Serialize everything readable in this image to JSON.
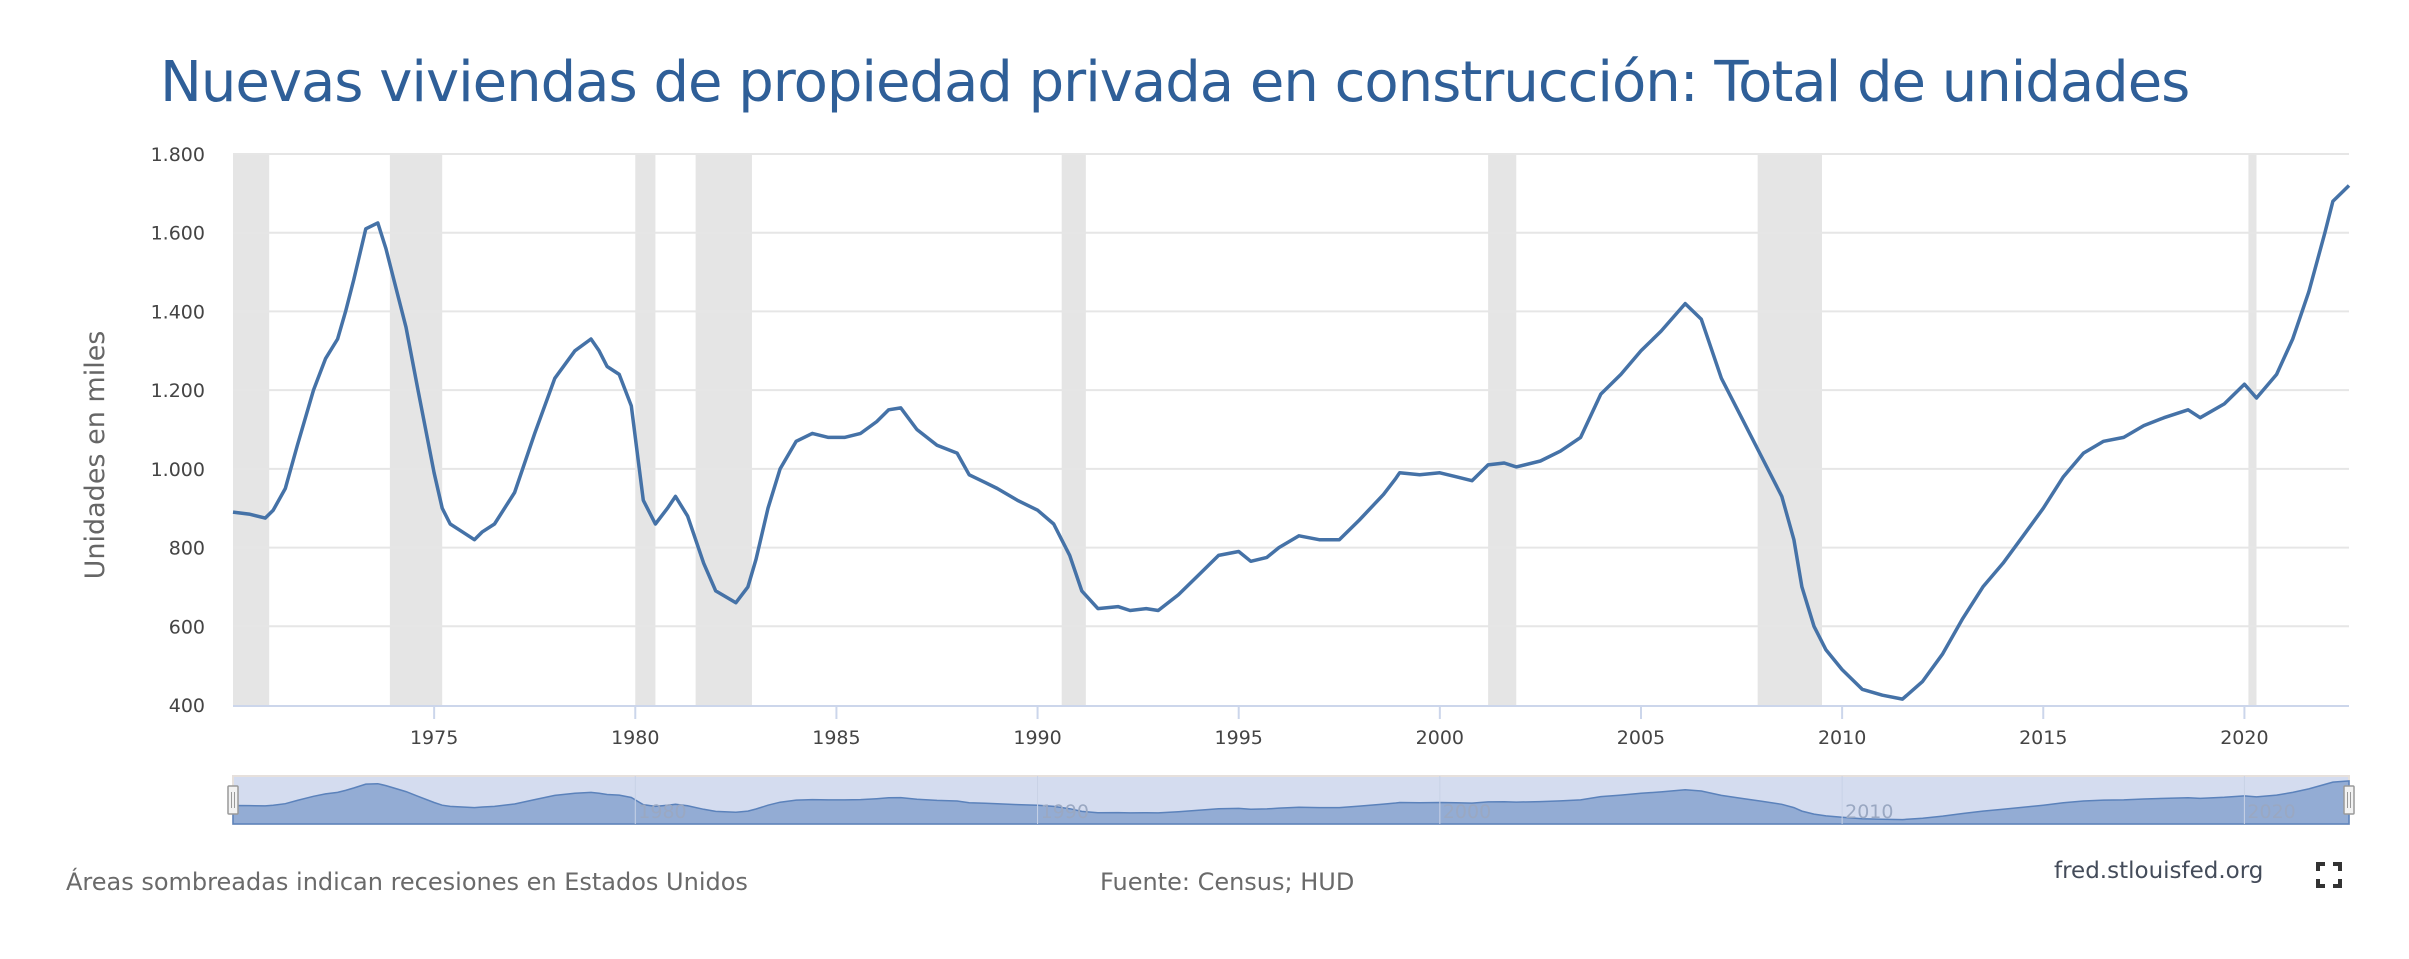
{
  "header": {
    "title": "Nuevas viviendas de propiedad privada en construcción: Total de unidades"
  },
  "footer": {
    "recession_note": "Áreas sombreadas indican recesiones en Estados Unidos",
    "source": "Fuente: Census; HUD",
    "site": "fred.stlouisfed.org",
    "fullscreen_icon": "fullscreen-icon"
  },
  "colors": {
    "title": "#2f5f98",
    "line": "#4572a7",
    "recession": "#e5e5e5",
    "grid": "#e6e6e6",
    "navigator_bg": "#d4dcef",
    "navigator_fill": "#93acd4"
  },
  "chart_data": {
    "type": "line",
    "title": "Nuevas viviendas de propiedad privada en construcción: Total de unidades",
    "xlabel": "",
    "ylabel": "Unidades en miles",
    "xlim": [
      1970.0,
      2022.6
    ],
    "ylim": [
      400,
      1800
    ],
    "grid": true,
    "legend": "none",
    "y_ticks": [
      400,
      600,
      800,
      1000,
      1200,
      1400,
      1600,
      1800
    ],
    "y_tick_labels": [
      "400",
      "600",
      "800",
      "1.000",
      "1.200",
      "1.400",
      "1.600",
      "1.800"
    ],
    "x_ticks": [
      1975,
      1980,
      1985,
      1990,
      1995,
      2000,
      2005,
      2010,
      2015,
      2020
    ],
    "x_tick_labels": [
      "1975",
      "1980",
      "1985",
      "1990",
      "1995",
      "2000",
      "2005",
      "2010",
      "2015",
      "2020"
    ],
    "navigator_ticks": [
      1980,
      1990,
      2000,
      2010,
      2020
    ],
    "navigator_tick_labels": [
      "1980",
      "1990",
      "2000",
      "2010",
      "2020"
    ],
    "recessions": [
      [
        1969.9,
        1970.9
      ],
      [
        1973.9,
        1975.2
      ],
      [
        1980.0,
        1980.5
      ],
      [
        1981.5,
        1982.9
      ],
      [
        1990.6,
        1991.2
      ],
      [
        2001.2,
        2001.9
      ],
      [
        2007.9,
        2009.5
      ],
      [
        2020.1,
        2020.3
      ]
    ],
    "series": [
      {
        "name": "Total de unidades",
        "x": [
          1970.0,
          1970.4,
          1970.8,
          1971.0,
          1971.3,
          1971.6,
          1972.0,
          1972.3,
          1972.6,
          1972.8,
          1973.0,
          1973.3,
          1973.6,
          1973.8,
          1974.0,
          1974.3,
          1974.6,
          1975.0,
          1975.2,
          1975.4,
          1975.7,
          1976.0,
          1976.2,
          1976.5,
          1977.0,
          1977.5,
          1978.0,
          1978.5,
          1978.9,
          1979.1,
          1979.3,
          1979.6,
          1979.9,
          1980.2,
          1980.5,
          1980.8,
          1981.0,
          1981.3,
          1981.7,
          1982.0,
          1982.5,
          1982.8,
          1983.0,
          1983.3,
          1983.6,
          1984.0,
          1984.4,
          1984.8,
          1985.2,
          1985.6,
          1986.0,
          1986.3,
          1986.6,
          1987.0,
          1987.5,
          1988.0,
          1988.3,
          1988.7,
          1989.0,
          1989.5,
          1990.0,
          1990.4,
          1990.8,
          1991.1,
          1991.5,
          1992.0,
          1992.3,
          1992.7,
          1993.0,
          1993.5,
          1994.0,
          1994.5,
          1995.0,
          1995.3,
          1995.7,
          1996.0,
          1996.5,
          1997.0,
          1997.5,
          1998.0,
          1998.6,
          1998.9,
          1999.0,
          1999.5,
          2000.0,
          2000.4,
          2000.8,
          2001.2,
          2001.6,
          2001.9,
          2002.5,
          2003.0,
          2003.5,
          2004.0,
          2004.5,
          2005.0,
          2005.5,
          2006.1,
          2006.5,
          2007.0,
          2007.5,
          2008.0,
          2008.5,
          2008.8,
          2009.0,
          2009.3,
          2009.6,
          2010.0,
          2010.5,
          2011.0,
          2011.5,
          2012.0,
          2012.5,
          2013.0,
          2013.5,
          2014.0,
          2014.5,
          2015.0,
          2015.5,
          2016.0,
          2016.5,
          2017.0,
          2017.5,
          2018.0,
          2018.6,
          2018.9,
          2019.5,
          2020.0,
          2020.3,
          2020.8,
          2021.2,
          2021.6,
          2022.0,
          2022.2,
          2022.4,
          2022.6
        ],
        "y": [
          890,
          885,
          875,
          895,
          950,
          1060,
          1200,
          1280,
          1330,
          1400,
          1480,
          1610,
          1625,
          1560,
          1480,
          1360,
          1200,
          990,
          900,
          860,
          840,
          820,
          840,
          860,
          940,
          1090,
          1230,
          1300,
          1330,
          1300,
          1260,
          1240,
          1160,
          920,
          860,
          900,
          930,
          880,
          760,
          690,
          660,
          700,
          770,
          900,
          1000,
          1070,
          1090,
          1080,
          1080,
          1090,
          1120,
          1150,
          1155,
          1100,
          1060,
          1040,
          985,
          965,
          950,
          920,
          895,
          860,
          780,
          690,
          645,
          650,
          640,
          645,
          640,
          680,
          730,
          780,
          790,
          765,
          775,
          800,
          830,
          820,
          820,
          870,
          935,
          975,
          990,
          985,
          990,
          980,
          970,
          1010,
          1015,
          1005,
          1020,
          1045,
          1080,
          1190,
          1240,
          1300,
          1350,
          1420,
          1380,
          1230,
          1130,
          1030,
          930,
          820,
          700,
          600,
          540,
          490,
          440,
          425,
          415,
          460,
          530,
          620,
          700,
          760,
          830,
          900,
          980,
          1040,
          1070,
          1080,
          1110,
          1130,
          1150,
          1130,
          1165,
          1215,
          1180,
          1240,
          1330,
          1450,
          1600,
          1680,
          1700,
          1720
        ]
      }
    ]
  }
}
